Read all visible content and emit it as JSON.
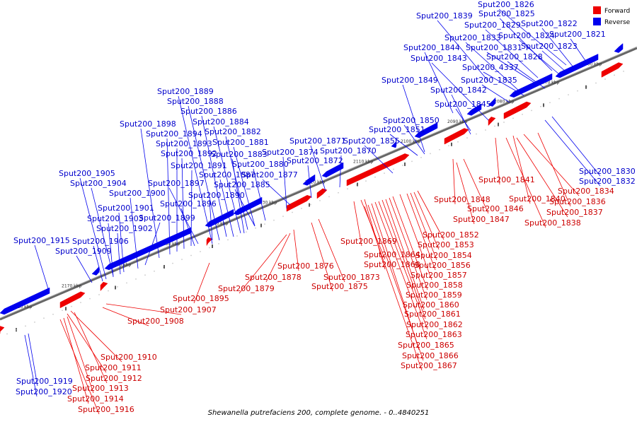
{
  "caption": "Shewanella putrefaciens 200, complete genome. - 0..4840251",
  "legend": {
    "forward_label": "Forward",
    "reverse_label": "Reverse",
    "forward_color": "#ee0000",
    "reverse_color": "#0000ee"
  },
  "ticks": [
    "2060 kbp",
    "2070 kbp",
    "2080 kbp",
    "2090 kbp",
    "2100 kbp",
    "2110 kbp",
    "2120 kbp",
    "2130 kbp",
    "2140 kbp",
    "2150 kbp",
    "2160 kbp",
    "2170 kbp",
    "2180 kbp"
  ],
  "reverse_labels": [
    "Sput200_1826",
    "Sput200_1839",
    "Sput200_1825",
    "Sput200_1829",
    "Sput200_1822",
    "Sput200_1833",
    "Sput200_1824",
    "Sput200_1821",
    "Sput200_1844",
    "Sput200_1831",
    "Sput200_1823",
    "Sput200_1843",
    "Sput200_1828",
    "Sput200_4337",
    "Sput200_1849",
    "Sput200_1835",
    "Sput200_1842",
    "Sput200_1845",
    "Sput200_1889",
    "Sput200_1888",
    "Sput200_1886",
    "Sput200_1884",
    "Sput200_1850",
    "Sput200_1898",
    "Sput200_1882",
    "Sput200_1851",
    "Sput200_1894",
    "Sput200_1881",
    "Sput200_1893",
    "Sput200_1871",
    "Sput200_1855",
    "Sput200_1883",
    "Sput200_1892",
    "Sput200_1874",
    "Sput200_1870",
    "Sput200_1880",
    "Sput200_1891",
    "Sput200_1872",
    "Sput200_1887",
    "Sput200_1877",
    "Sput200_1905",
    "Sput200_1897",
    "Sput200_1885",
    "Sput200_1904",
    "Sput200_1900",
    "Sput200_1890",
    "Sput200_1896",
    "Sput200_1901",
    "Sput200_1903",
    "Sput200_1899",
    "Sput200_1902",
    "Sput200_1915",
    "Sput200_1906",
    "Sput200_1909",
    "Sput200_1830",
    "Sput200_1832",
    "Sput200_1919",
    "Sput200_1920"
  ],
  "forward_labels": [
    "Sput200_1841",
    "Sput200_1834",
    "Sput200_1848",
    "Sput200_1840",
    "Sput200_1836",
    "Sput200_1846",
    "Sput200_1837",
    "Sput200_1847",
    "Sput200_1838",
    "Sput200_1852",
    "Sput200_1869",
    "Sput200_1853",
    "Sput200_1864",
    "Sput200_1854",
    "Sput200_1868",
    "Sput200_1856",
    "Sput200_1876",
    "Sput200_1857",
    "Sput200_1878",
    "Sput200_1873",
    "Sput200_1858",
    "Sput200_1879",
    "Sput200_1875",
    "Sput200_1859",
    "Sput200_1895",
    "Sput200_1860",
    "Sput200_1907",
    "Sput200_1861",
    "Sput200_1908",
    "Sput200_1862",
    "Sput200_1863",
    "Sput200_1865",
    "Sput200_1866",
    "Sput200_1867",
    "Sput200_1910",
    "Sput200_1911",
    "Sput200_1912",
    "Sput200_1913",
    "Sput200_1914",
    "Sput200_1916"
  ]
}
